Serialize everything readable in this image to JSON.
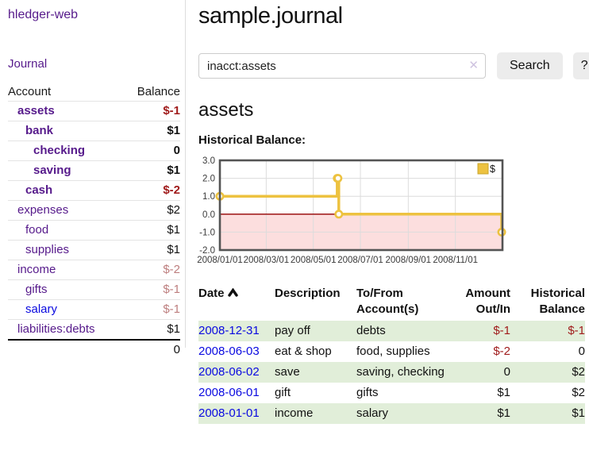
{
  "colors": {
    "purple": "#561a8b",
    "blue": "#0a0ae0",
    "negstrong": "#a01c1c",
    "negsoft": "#bd7e7e",
    "rowgreen": "#e1eed9",
    "gold": "#edc240",
    "goldborder": "#c9a42a",
    "pink": "#fcdede",
    "zero": "#940000",
    "chartborder": "#545454",
    "grid": "#dcdcdc",
    "btnbg": "#ececec",
    "borderlight": "#dddddd",
    "clearx": "#cfc3e0"
  },
  "sidebar": {
    "brand": "hledger-web",
    "nav_journal": "Journal",
    "table": {
      "account_header": "Account",
      "balance_header": "Balance",
      "rows": [
        {
          "account": "assets",
          "balance": "$-1"
        },
        {
          "account": "bank",
          "balance": "$1"
        },
        {
          "account": "checking",
          "balance": "0"
        },
        {
          "account": "saving",
          "balance": "$1"
        },
        {
          "account": "cash",
          "balance": "$-2"
        },
        {
          "account": "expenses",
          "balance": "$2"
        },
        {
          "account": "food",
          "balance": "$1"
        },
        {
          "account": "supplies",
          "balance": "$1"
        },
        {
          "account": "income",
          "balance": "$-2"
        },
        {
          "account": "gifts",
          "balance": "$-1"
        },
        {
          "account": "salary",
          "balance": "$-1"
        },
        {
          "account": "liabilities:debts",
          "balance": "$1"
        }
      ],
      "total": "0"
    }
  },
  "main": {
    "title": "sample.journal",
    "search": {
      "value": "inacct:assets",
      "clear_icon": "✕",
      "button_label": "Search",
      "help_label": "?"
    },
    "account_heading": "assets",
    "chart_heading": "Historical Balance:"
  },
  "chart_data": {
    "type": "line",
    "step": true,
    "title": "Historical Balance",
    "series": [
      {
        "name": "$",
        "points": [
          [
            "2008-01-01",
            1
          ],
          [
            "2008-06-01",
            2
          ],
          [
            "2008-06-02",
            2
          ],
          [
            "2008-06-03",
            0
          ],
          [
            "2008-12-31",
            -1
          ]
        ]
      }
    ],
    "x_domain": [
      "2008-01-01",
      "2009-01-01"
    ],
    "xticks": [
      "2008/01/01",
      "2008/03/01",
      "2008/05/01",
      "2008/07/01",
      "2008/09/01",
      "2008/11/01"
    ],
    "ylim": [
      -2,
      3
    ],
    "yticks": [
      3.0,
      2.0,
      1.0,
      0.0,
      -1.0,
      -2.0
    ],
    "grid": true,
    "legend_position": "top-right",
    "negative_region_fill": "#fcdede",
    "line_color": "#edc240"
  },
  "register": {
    "headers": {
      "date": "Date",
      "description": "Description",
      "accounts": "To/From Account(s)",
      "amount": "Amount Out/In",
      "balance": "Historical Balance"
    },
    "rows": [
      {
        "date": "2008-12-31",
        "description": "pay off",
        "accounts": "debts",
        "amount": "$-1",
        "balance": "$-1"
      },
      {
        "date": "2008-06-03",
        "description": "eat & shop",
        "accounts": "food, supplies",
        "amount": "$-2",
        "balance": "0"
      },
      {
        "date": "2008-06-02",
        "description": "save",
        "accounts": "saving, checking",
        "amount": "0",
        "balance": "$2"
      },
      {
        "date": "2008-06-01",
        "description": "gift",
        "accounts": "gifts",
        "amount": "$1",
        "balance": "$2"
      },
      {
        "date": "2008-01-01",
        "description": "income",
        "accounts": "salary",
        "amount": "$1",
        "balance": "$1"
      }
    ]
  }
}
